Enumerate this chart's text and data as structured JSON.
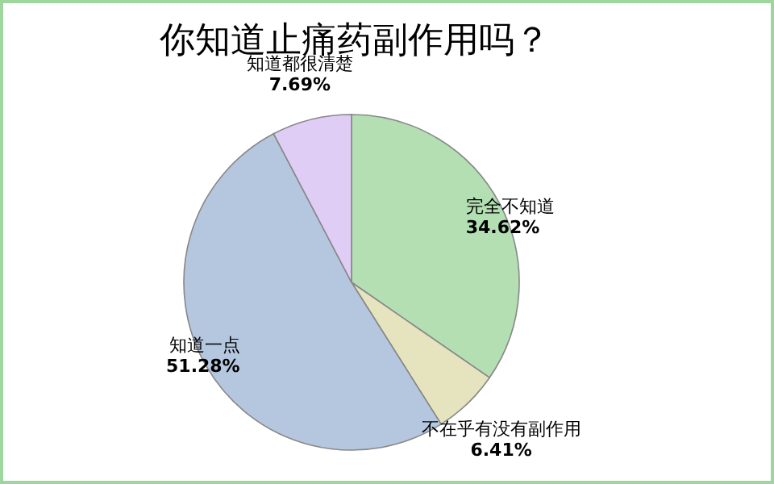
{
  "chart_data": {
    "type": "pie",
    "title": "你知道止痛药副作用吗？",
    "categories": [
      "完全不知道",
      "不在乎有没有副作用",
      "知道一点",
      "知道都很清楚"
    ],
    "values": [
      34.62,
      6.41,
      51.28,
      7.69
    ],
    "colors": [
      "#b3dfb3",
      "#e6e3bf",
      "#b5c7df",
      "#e0cdf5"
    ],
    "value_labels": [
      "34.62%",
      "6.41%",
      "51.28%",
      "7.69%"
    ]
  }
}
